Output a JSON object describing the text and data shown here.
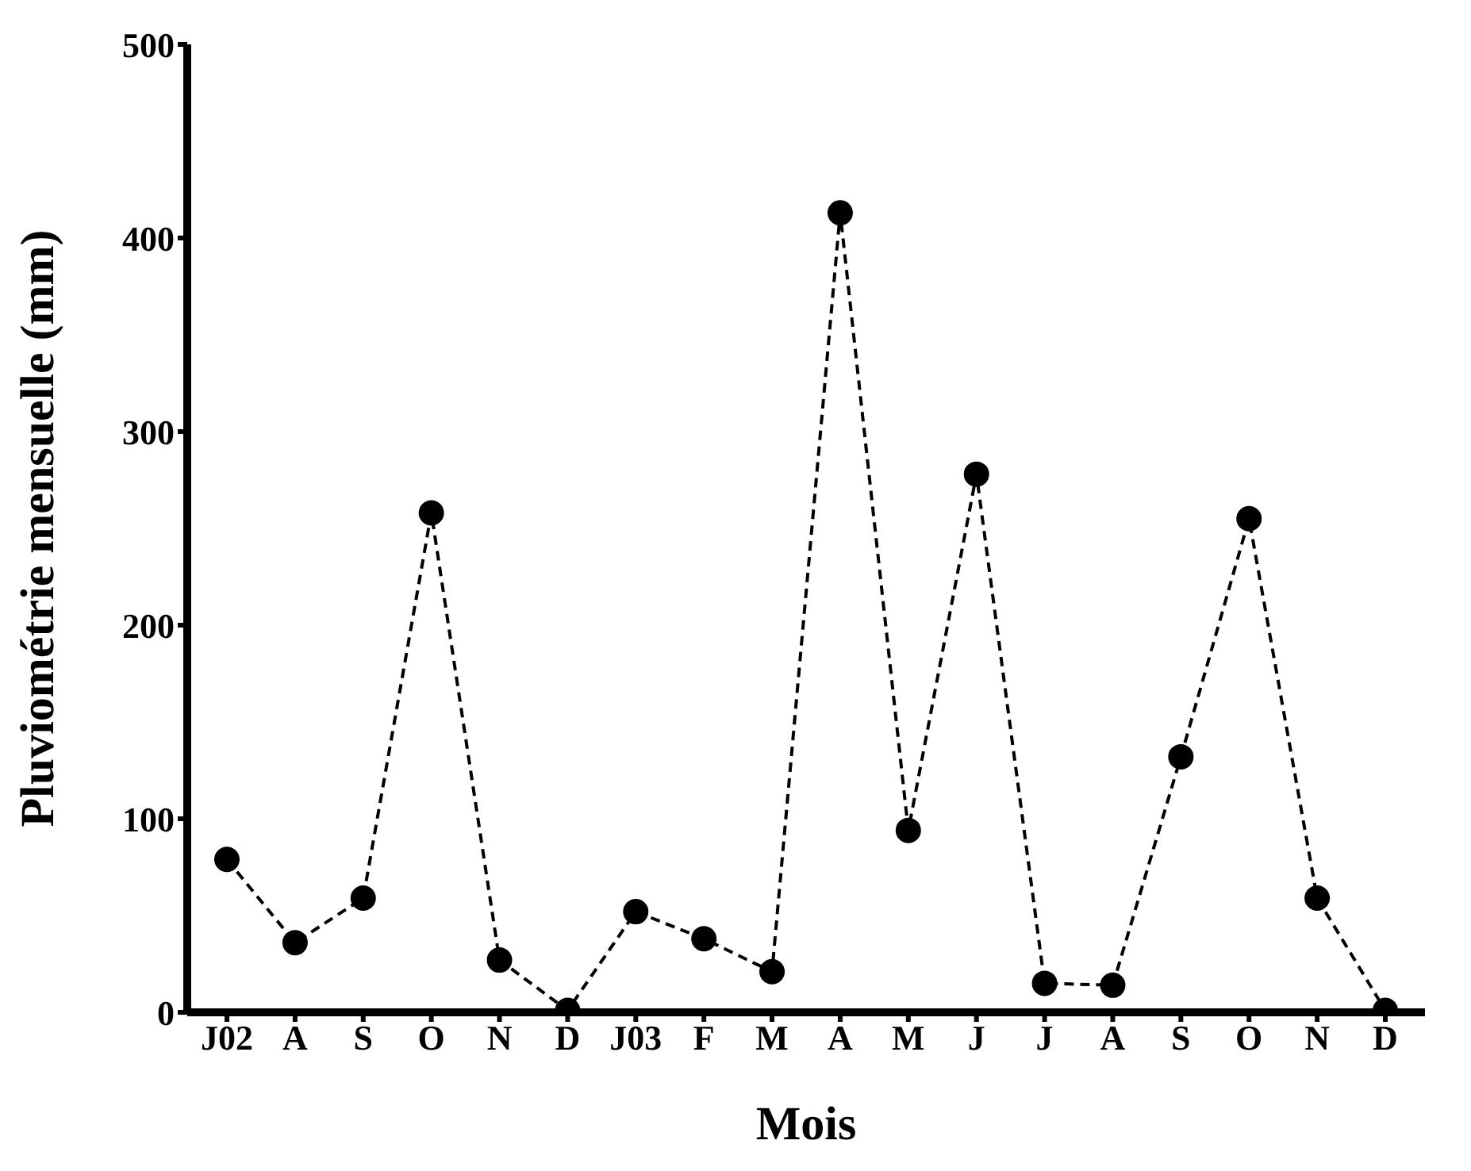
{
  "chart_data": {
    "type": "line",
    "xlabel": "Mois",
    "ylabel": "Pluviométrie mensuelle (mm)",
    "categories": [
      "J02",
      "A",
      "S",
      "O",
      "N",
      "D",
      "J03",
      "F",
      "M",
      "A",
      "M",
      "J",
      "J",
      "A",
      "S",
      "O",
      "N",
      "D"
    ],
    "series": [
      {
        "color": "#000000",
        "values": [
          79,
          36,
          59,
          258,
          27,
          1,
          52,
          38,
          21,
          413,
          94,
          278,
          15,
          14,
          132,
          255,
          59,
          1
        ]
      }
    ],
    "ylim": [
      0,
      500
    ],
    "yticks": [
      0,
      100,
      200,
      300,
      400,
      500
    ],
    "grid": false,
    "legend": false,
    "marker": "circle",
    "line_style": "dashed"
  }
}
